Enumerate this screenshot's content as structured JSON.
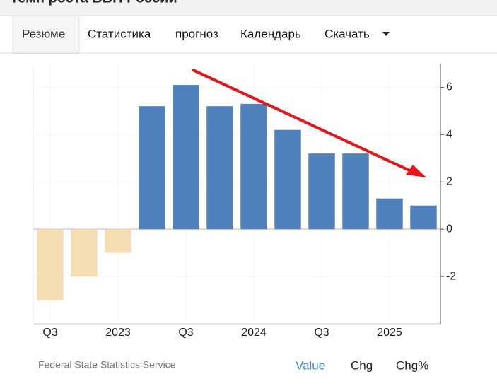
{
  "header": {
    "title": "Темп роста ВВП России"
  },
  "tabs": [
    "Резюме",
    "Статистика",
    "прогноз",
    "Календарь",
    "Скачать"
  ],
  "chart_data": {
    "type": "bar",
    "categories": [
      "Q3",
      null,
      "2023",
      null,
      "Q3",
      null,
      "2024",
      null,
      "Q3",
      null,
      "2025",
      null
    ],
    "values": [
      -3.0,
      -2.0,
      -1.0,
      5.2,
      6.1,
      5.2,
      5.3,
      4.2,
      3.2,
      3.2,
      1.3,
      1.0
    ],
    "positive_color": "#4f81bd",
    "negative_color": "#f5deb3",
    "ylim": [
      -4,
      7
    ],
    "yticks": [
      -2,
      0,
      2,
      4,
      6
    ],
    "grid": true
  },
  "footer": {
    "source": "Federal State Statistics Service",
    "buttons": [
      "Value",
      "Chg",
      "Chg%"
    ]
  }
}
